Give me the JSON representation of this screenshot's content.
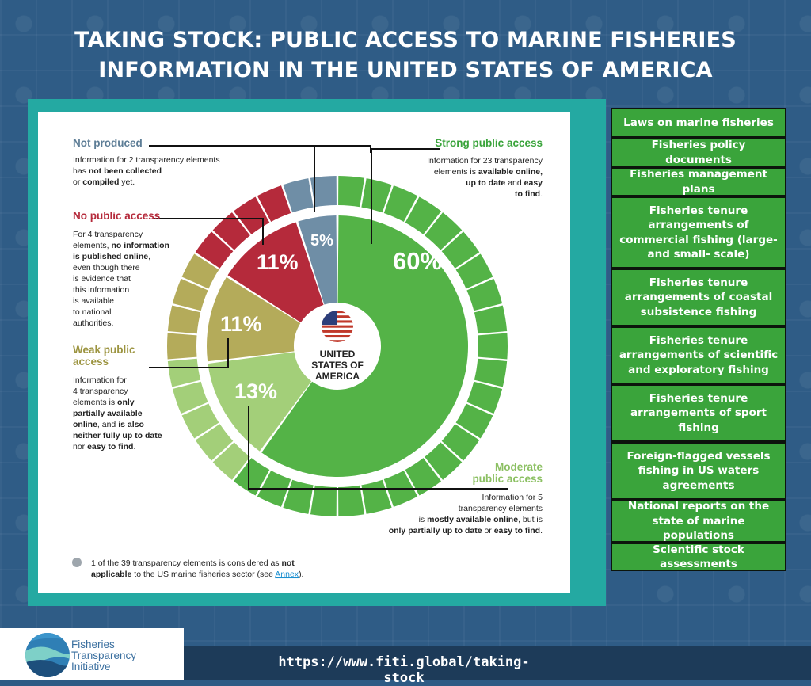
{
  "title_line1": "TAKING STOCK: PUBLIC ACCESS TO MARINE FISHERIES",
  "title_line2": "INFORMATION IN THE UNITED STATES OF AMERICA",
  "colors": {
    "strong": "#54b347",
    "moderate": "#a3cf79",
    "weak": "#b4ab5a",
    "none": "#b52a3b",
    "not_produced": "#6f8ea6",
    "frame": "#24a9a2",
    "category_box": "#3aa43b"
  },
  "chart_data": {
    "type": "pie",
    "title": "",
    "center_label": [
      "UNITED",
      "STATES OF",
      "AMERICA"
    ],
    "total_elements": 39,
    "categories": [
      "Strong public access",
      "Moderate public access",
      "Weak public access",
      "No public access",
      "Not produced"
    ],
    "values": [
      60,
      13,
      11,
      11,
      5
    ],
    "value_labels": [
      "60%",
      "13%",
      "11%",
      "11%",
      "5%"
    ],
    "element_counts": [
      23,
      5,
      4,
      4,
      2
    ],
    "descriptions": [
      "Information for 23 transparency elements is available online, up to date and easy to find.",
      "Information for 5 transparency elements is mostly available online, but is only partially up to date or easy to find.",
      "Information for 4 transparency elements is only partially available online, and is also neither fully up to date nor easy to find.",
      "For 4 transparency elements, no information is published online, even though there is evidence that this information is available to national authorities.",
      "Information for 2 transparency elements has not been collected or compiled yet."
    ]
  },
  "labels": {
    "strong": "Strong public access",
    "moderate": [
      "Moderate",
      "public access"
    ],
    "weak": [
      "Weak public",
      "access"
    ],
    "none": "No public access",
    "not_produced": "Not produced"
  },
  "note": {
    "text1": "1 of the 39 transparency elements is considered as ",
    "bold1": "not",
    "bold2": "applicable",
    "text2": " to the US marine fisheries sector (see ",
    "link": "Annex",
    "text3": ")."
  },
  "strong_categories": [
    "Laws on marine fisheries",
    "Fisheries policy documents",
    "Fisheries management plans",
    "Fisheries tenure arrangements of commercial fishing (large- and small- scale)",
    "Fisheries tenure arrangements of coastal subsistence fishing",
    "Fisheries tenure arrangements of scientific and exploratory fishing",
    "Fisheries tenure arrangements of sport fishing",
    "Foreign-flagged vessels fishing in US waters agreements",
    "National reports on the state of marine populations",
    "Scientific stock assessments"
  ],
  "footer_url": "https://www.fiti.global/taking-stock",
  "logo": {
    "name": "logo-fiti",
    "line1": "Fisheries",
    "line2": "Transparency",
    "line3": "Initiative"
  }
}
